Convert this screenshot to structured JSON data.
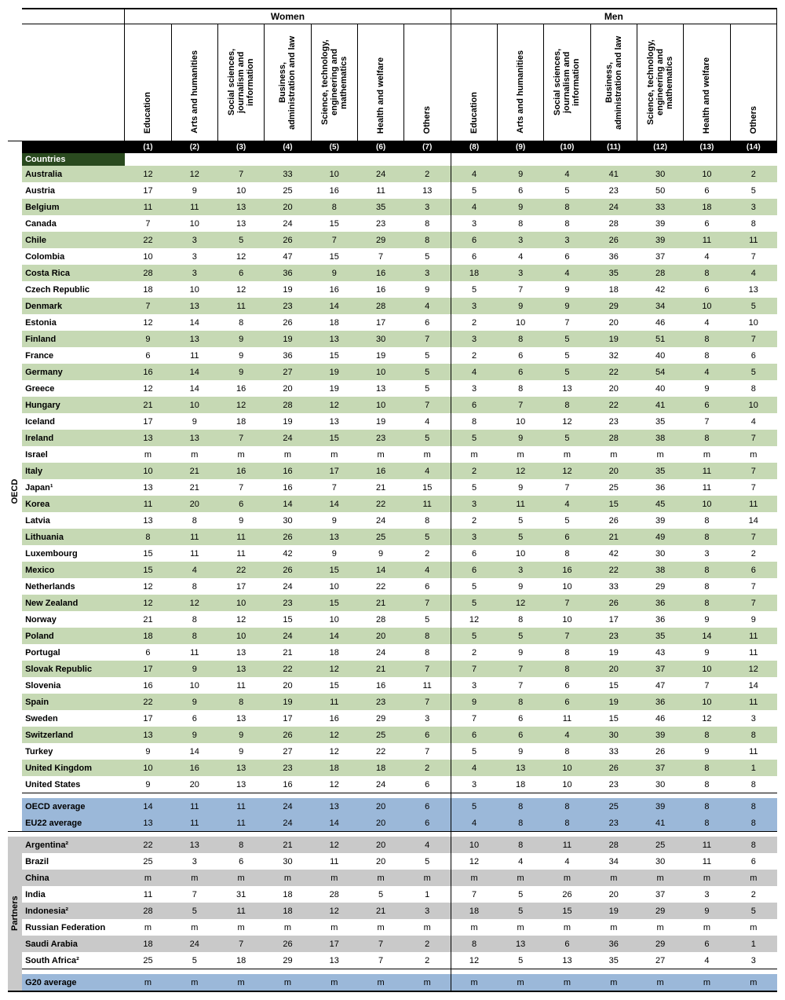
{
  "colors": {
    "stripe_green": "#c6d9b4",
    "stripe_gray": "#c9c9c9",
    "avg_blue": "#9bb8d9",
    "section_green": "#2a4a1f"
  },
  "top_groups": [
    "Women",
    "Men"
  ],
  "side_labels": [
    "OECD",
    "Partners"
  ],
  "section_header": "Countries",
  "col_headers": [
    "Education",
    "Arts and humanities",
    "Social sciences, journalism and information",
    "Business, administration and law",
    "Science, technology, engineering and mathematics",
    "Health and welfare",
    "Others",
    "Education",
    "Arts and humanities",
    "Social sciences, journalism and information",
    "Business, administration and law",
    "Science, technology, engineering and mathematics",
    "Health and welfare",
    "Others"
  ],
  "col_nums": [
    "(1)",
    "(2)",
    "(3)",
    "(4)",
    "(5)",
    "(6)",
    "(7)",
    "(8)",
    "(9)",
    "(10)",
    "(11)",
    "(12)",
    "(13)",
    "(14)"
  ],
  "oecd_rows": [
    {
      "c": "Australia",
      "v": [
        12,
        12,
        7,
        33,
        10,
        24,
        2,
        4,
        9,
        4,
        41,
        30,
        10,
        2
      ]
    },
    {
      "c": "Austria",
      "v": [
        17,
        9,
        10,
        25,
        16,
        11,
        13,
        5,
        6,
        5,
        23,
        50,
        6,
        5
      ]
    },
    {
      "c": "Belgium",
      "v": [
        11,
        11,
        13,
        20,
        8,
        35,
        3,
        4,
        9,
        8,
        24,
        33,
        18,
        3
      ]
    },
    {
      "c": "Canada",
      "v": [
        7,
        10,
        13,
        24,
        15,
        23,
        8,
        3,
        8,
        8,
        28,
        39,
        6,
        8
      ]
    },
    {
      "c": "Chile",
      "v": [
        22,
        3,
        5,
        26,
        7,
        29,
        8,
        6,
        3,
        3,
        26,
        39,
        11,
        11
      ]
    },
    {
      "c": "Colombia",
      "v": [
        10,
        3,
        12,
        47,
        15,
        7,
        5,
        6,
        4,
        6,
        36,
        37,
        4,
        7
      ]
    },
    {
      "c": "Costa Rica",
      "v": [
        28,
        3,
        6,
        36,
        9,
        16,
        3,
        18,
        3,
        4,
        35,
        28,
        8,
        4
      ]
    },
    {
      "c": "Czech Republic",
      "v": [
        18,
        10,
        12,
        19,
        16,
        16,
        9,
        5,
        7,
        9,
        18,
        42,
        6,
        13
      ]
    },
    {
      "c": "Denmark",
      "v": [
        7,
        13,
        11,
        23,
        14,
        28,
        4,
        3,
        9,
        9,
        29,
        34,
        10,
        5
      ]
    },
    {
      "c": "Estonia",
      "v": [
        12,
        14,
        8,
        26,
        18,
        17,
        6,
        2,
        10,
        7,
        20,
        46,
        4,
        10
      ]
    },
    {
      "c": "Finland",
      "v": [
        9,
        13,
        9,
        19,
        13,
        30,
        7,
        3,
        8,
        5,
        19,
        51,
        8,
        7
      ]
    },
    {
      "c": "France",
      "v": [
        6,
        11,
        9,
        36,
        15,
        19,
        5,
        2,
        6,
        5,
        32,
        40,
        8,
        6
      ]
    },
    {
      "c": "Germany",
      "v": [
        16,
        14,
        9,
        27,
        19,
        10,
        5,
        4,
        6,
        5,
        22,
        54,
        4,
        5
      ]
    },
    {
      "c": "Greece",
      "v": [
        12,
        14,
        16,
        20,
        19,
        13,
        5,
        3,
        8,
        13,
        20,
        40,
        9,
        8
      ]
    },
    {
      "c": "Hungary",
      "v": [
        21,
        10,
        12,
        28,
        12,
        10,
        7,
        6,
        7,
        8,
        22,
        41,
        6,
        10
      ]
    },
    {
      "c": "Iceland",
      "v": [
        17,
        9,
        18,
        19,
        13,
        19,
        4,
        8,
        10,
        12,
        23,
        35,
        7,
        4
      ]
    },
    {
      "c": "Ireland",
      "v": [
        13,
        13,
        7,
        24,
        15,
        23,
        5,
        5,
        9,
        5,
        28,
        38,
        8,
        7
      ]
    },
    {
      "c": "Israel",
      "v": [
        "m",
        "m",
        "m",
        "m",
        "m",
        "m",
        "m",
        "m",
        "m",
        "m",
        "m",
        "m",
        "m",
        "m"
      ]
    },
    {
      "c": "Italy",
      "v": [
        10,
        21,
        16,
        16,
        17,
        16,
        4,
        2,
        12,
        12,
        20,
        35,
        11,
        7
      ]
    },
    {
      "c": "Japan¹",
      "v": [
        13,
        21,
        7,
        16,
        7,
        21,
        15,
        5,
        9,
        7,
        25,
        36,
        11,
        7
      ]
    },
    {
      "c": "Korea",
      "v": [
        11,
        20,
        6,
        14,
        14,
        22,
        11,
        3,
        11,
        4,
        15,
        45,
        10,
        11
      ]
    },
    {
      "c": "Latvia",
      "v": [
        13,
        8,
        9,
        30,
        9,
        24,
        8,
        2,
        5,
        5,
        26,
        39,
        8,
        14
      ]
    },
    {
      "c": "Lithuania",
      "v": [
        8,
        11,
        11,
        26,
        13,
        25,
        5,
        3,
        5,
        6,
        21,
        49,
        8,
        7
      ]
    },
    {
      "c": "Luxembourg",
      "v": [
        15,
        11,
        11,
        42,
        9,
        9,
        2,
        6,
        10,
        8,
        42,
        30,
        3,
        2
      ]
    },
    {
      "c": "Mexico",
      "v": [
        15,
        4,
        22,
        26,
        15,
        14,
        4,
        6,
        3,
        16,
        22,
        38,
        8,
        6
      ]
    },
    {
      "c": "Netherlands",
      "v": [
        12,
        8,
        17,
        24,
        10,
        22,
        6,
        5,
        9,
        10,
        33,
        29,
        8,
        7
      ]
    },
    {
      "c": "New Zealand",
      "v": [
        12,
        12,
        10,
        23,
        15,
        21,
        7,
        5,
        12,
        7,
        26,
        36,
        8,
        7
      ]
    },
    {
      "c": "Norway",
      "v": [
        21,
        8,
        12,
        15,
        10,
        28,
        5,
        12,
        8,
        10,
        17,
        36,
        9,
        9
      ]
    },
    {
      "c": "Poland",
      "v": [
        18,
        8,
        10,
        24,
        14,
        20,
        8,
        5,
        5,
        7,
        23,
        35,
        14,
        11
      ]
    },
    {
      "c": "Portugal",
      "v": [
        6,
        11,
        13,
        21,
        18,
        24,
        8,
        2,
        9,
        8,
        19,
        43,
        9,
        11
      ]
    },
    {
      "c": "Slovak Republic",
      "v": [
        17,
        9,
        13,
        22,
        12,
        21,
        7,
        7,
        7,
        8,
        20,
        37,
        10,
        12
      ]
    },
    {
      "c": "Slovenia",
      "v": [
        16,
        10,
        11,
        20,
        15,
        16,
        11,
        3,
        7,
        6,
        15,
        47,
        7,
        14
      ]
    },
    {
      "c": "Spain",
      "v": [
        22,
        9,
        8,
        19,
        11,
        23,
        7,
        9,
        8,
        6,
        19,
        36,
        10,
        11
      ]
    },
    {
      "c": "Sweden",
      "v": [
        17,
        6,
        13,
        17,
        16,
        29,
        3,
        7,
        6,
        11,
        15,
        46,
        12,
        3
      ]
    },
    {
      "c": "Switzerland",
      "v": [
        13,
        9,
        9,
        26,
        12,
        25,
        6,
        6,
        6,
        4,
        30,
        39,
        8,
        8
      ]
    },
    {
      "c": "Turkey",
      "v": [
        9,
        14,
        9,
        27,
        12,
        22,
        7,
        5,
        9,
        8,
        33,
        26,
        9,
        11
      ]
    },
    {
      "c": "United Kingdom",
      "v": [
        10,
        16,
        13,
        23,
        18,
        18,
        2,
        4,
        13,
        10,
        26,
        37,
        8,
        1
      ]
    },
    {
      "c": "United States",
      "v": [
        9,
        20,
        13,
        16,
        12,
        24,
        6,
        3,
        18,
        10,
        23,
        30,
        8,
        8
      ]
    }
  ],
  "oecd_avgs": [
    {
      "c": "OECD average",
      "v": [
        14,
        11,
        11,
        24,
        13,
        20,
        6,
        5,
        8,
        8,
        25,
        39,
        8,
        8
      ]
    },
    {
      "c": "EU22 average",
      "v": [
        13,
        11,
        11,
        24,
        14,
        20,
        6,
        4,
        8,
        8,
        23,
        41,
        8,
        8
      ]
    }
  ],
  "partner_rows": [
    {
      "c": "Argentina²",
      "v": [
        22,
        13,
        8,
        21,
        12,
        20,
        4,
        10,
        8,
        11,
        28,
        25,
        11,
        8
      ]
    },
    {
      "c": "Brazil",
      "v": [
        25,
        3,
        6,
        30,
        11,
        20,
        5,
        12,
        4,
        4,
        34,
        30,
        11,
        6
      ]
    },
    {
      "c": "China",
      "v": [
        "m",
        "m",
        "m",
        "m",
        "m",
        "m",
        "m",
        "m",
        "m",
        "m",
        "m",
        "m",
        "m",
        "m"
      ]
    },
    {
      "c": "India",
      "v": [
        11,
        7,
        31,
        18,
        28,
        5,
        1,
        7,
        5,
        26,
        20,
        37,
        3,
        2
      ]
    },
    {
      "c": "Indonesia²",
      "v": [
        28,
        5,
        11,
        18,
        12,
        21,
        3,
        18,
        5,
        15,
        19,
        29,
        9,
        5
      ]
    },
    {
      "c": "Russian Federation",
      "v": [
        "m",
        "m",
        "m",
        "m",
        "m",
        "m",
        "m",
        "m",
        "m",
        "m",
        "m",
        "m",
        "m",
        "m"
      ]
    },
    {
      "c": "Saudi Arabia",
      "v": [
        18,
        24,
        7,
        26,
        17,
        7,
        2,
        8,
        13,
        6,
        36,
        29,
        6,
        1
      ]
    },
    {
      "c": "South Africa²",
      "v": [
        25,
        5,
        18,
        29,
        13,
        7,
        2,
        12,
        5,
        13,
        35,
        27,
        4,
        3
      ]
    }
  ],
  "partner_avgs": [
    {
      "c": "G20 average",
      "v": [
        "m",
        "m",
        "m",
        "m",
        "m",
        "m",
        "m",
        "m",
        "m",
        "m",
        "m",
        "m",
        "m",
        "m"
      ]
    }
  ]
}
